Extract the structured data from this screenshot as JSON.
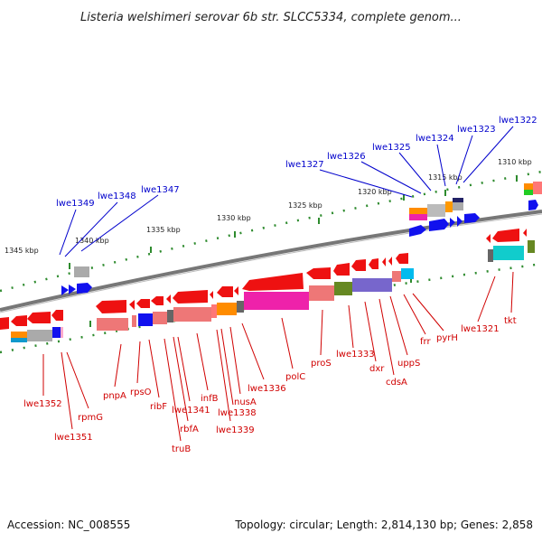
{
  "title": "Listeria welshimeri serovar 6b str. SLCC5334, complete genom...",
  "footer": {
    "accession": "Accession: NC_008555",
    "summary": "Topology: circular; Length: 2,814,130 bp; Genes: 2,858"
  },
  "ticks": [
    "1345 kbp",
    "1340 kbp",
    "1335 kbp",
    "1330 kbp",
    "1325 kbp",
    "1320 kbp",
    "1315 kbp",
    "1310 kbp"
  ],
  "colors": {
    "gene_red": "#ee1111",
    "gene_blue": "#1111ee",
    "label_red": "#d00000",
    "label_blue": "#0000cc",
    "backbone": "#777777",
    "tick_green": "#2e8b2e"
  },
  "labels_top": [
    "lwe1349",
    "lwe1348",
    "lwe1347",
    "lwe1327",
    "lwe1326",
    "lwe1325",
    "lwe1324",
    "lwe1323",
    "lwe1322"
  ],
  "labels_bottom": [
    "lwe1352",
    "lwe1351",
    "rpmG",
    "pnpA",
    "rpsO",
    "ribF",
    "truB",
    "rbfA",
    "lwe1341",
    "infB",
    "lwe1339",
    "lwe1338",
    "nusA",
    "lwe1336",
    "polC",
    "proS",
    "lwe1333",
    "dxr",
    "cdsA",
    "uppS",
    "frr",
    "pyrH",
    "lwe1321",
    "tkt"
  ]
}
